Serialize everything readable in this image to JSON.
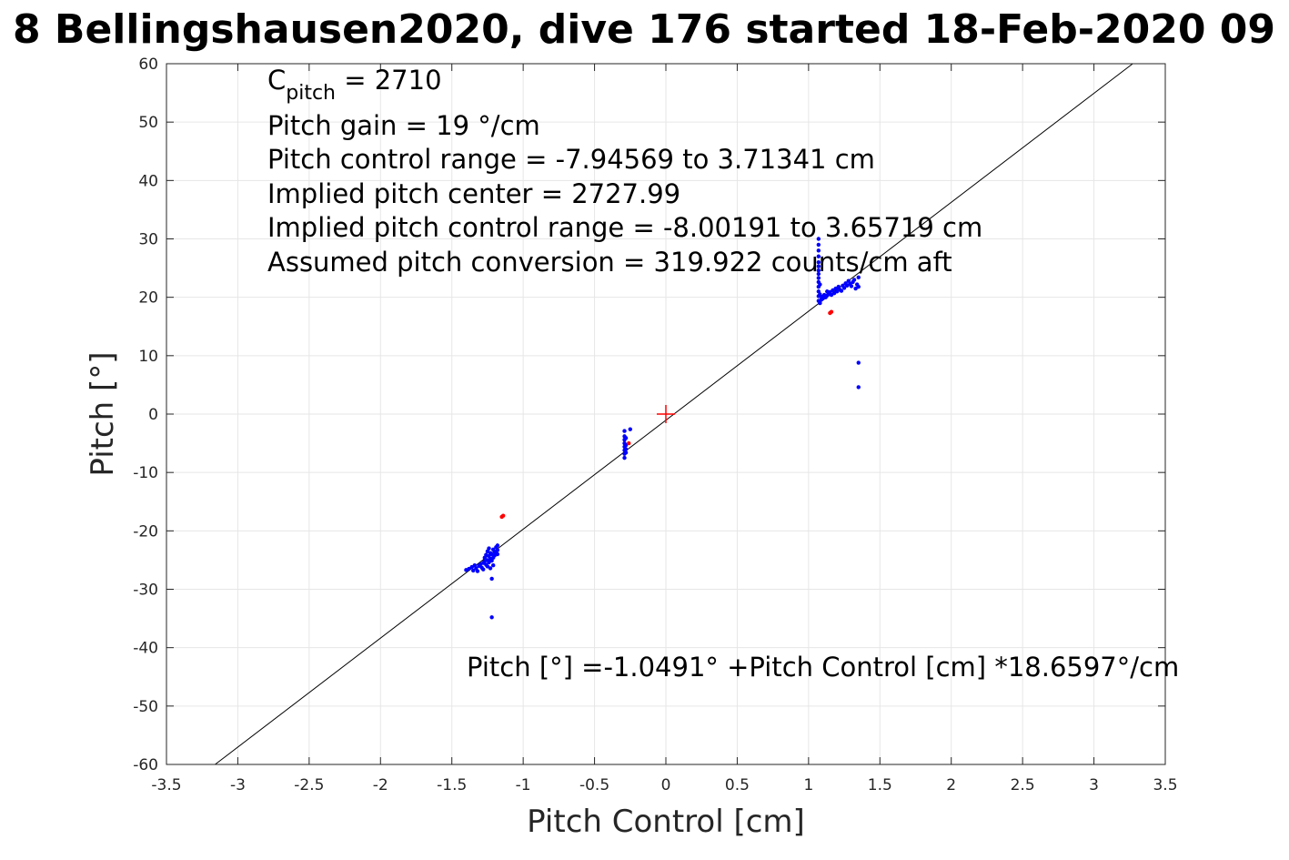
{
  "chart_data": {
    "type": "scatter",
    "title": "8 Bellingshausen2020, dive 176 started 18-Feb-2020 09",
    "xlabel": "Pitch Control [cm]",
    "ylabel": "Pitch [°]",
    "xlim": [
      -3.5,
      3.5
    ],
    "ylim": [
      -60,
      60
    ],
    "x_ticks": [
      -3.5,
      -3,
      -2.5,
      -2,
      -1.5,
      -1,
      -0.5,
      0,
      0.5,
      1,
      1.5,
      2,
      2.5,
      3,
      3.5
    ],
    "x_tick_labels": [
      "-3.5",
      "-3",
      "-2.5",
      "-2",
      "-1.5",
      "-1",
      "-0.5",
      "0",
      "0.5",
      "1",
      "1.5",
      "2",
      "2.5",
      "3",
      "3.5"
    ],
    "y_ticks": [
      -60,
      -50,
      -40,
      -30,
      -20,
      -10,
      0,
      10,
      20,
      30,
      40,
      50,
      60
    ],
    "y_tick_labels": [
      "-60",
      "-50",
      "-40",
      "-30",
      "-20",
      "-10",
      "0",
      "10",
      "20",
      "30",
      "40",
      "50",
      "60"
    ],
    "grid": true,
    "annotations": {
      "c_pitch_label": "C",
      "c_pitch_sub": "pitch",
      "c_pitch_value": " = 2710",
      "pitch_gain": "Pitch gain = 19 °/cm",
      "control_range": "Pitch control range = -7.94569 to 3.71341 cm",
      "implied_center": "Implied pitch center = 2727.99",
      "implied_range": "Implied pitch control range = -8.00191 to 3.65719 cm",
      "conversion": "Assumed pitch conversion = 319.922 counts/cm aft",
      "fit_equation": "Pitch [°] =-1.0491° +Pitch Control [cm] *18.6597°/cm"
    },
    "fit_line": {
      "intercept": -1.0491,
      "slope": 18.6597,
      "color": "#000000"
    },
    "center_marker": {
      "x": 0,
      "y": 0,
      "color": "#ff0000"
    },
    "series": [
      {
        "color": "#0000ff",
        "points": [
          [
            -1.4,
            -26.7
          ],
          [
            -1.38,
            -26.5
          ],
          [
            -1.36,
            -26.2
          ],
          [
            -1.35,
            -26.8
          ],
          [
            -1.34,
            -25.9
          ],
          [
            -1.33,
            -26.4
          ],
          [
            -1.32,
            -26.9
          ],
          [
            -1.31,
            -26.0
          ],
          [
            -1.3,
            -25.7
          ],
          [
            -1.29,
            -26.3
          ],
          [
            -1.28,
            -25.5
          ],
          [
            -1.28,
            -26.6
          ],
          [
            -1.27,
            -25.2
          ],
          [
            -1.27,
            -24.6
          ],
          [
            -1.26,
            -25.8
          ],
          [
            -1.26,
            -24.1
          ],
          [
            -1.25,
            -23.5
          ],
          [
            -1.25,
            -25.0
          ],
          [
            -1.25,
            -26.1
          ],
          [
            -1.24,
            -24.3
          ],
          [
            -1.24,
            -23.0
          ],
          [
            -1.24,
            -25.4
          ],
          [
            -1.23,
            -24.8
          ],
          [
            -1.23,
            -23.8
          ],
          [
            -1.23,
            -26.4
          ],
          [
            -1.22,
            -25.1
          ],
          [
            -1.22,
            -24.0
          ],
          [
            -1.22,
            -28.2
          ],
          [
            -1.22,
            -34.8
          ],
          [
            -1.21,
            -23.2
          ],
          [
            -1.21,
            -24.6
          ],
          [
            -1.21,
            -25.9
          ],
          [
            -1.2,
            -23.6
          ],
          [
            -1.2,
            -24.2
          ],
          [
            -1.19,
            -22.8
          ],
          [
            -1.19,
            -23.9
          ],
          [
            -1.18,
            -23.3
          ],
          [
            -1.18,
            -22.5
          ],
          [
            -1.18,
            -24.0
          ],
          [
            -0.29,
            -2.9
          ],
          [
            -0.29,
            -3.8
          ],
          [
            -0.29,
            -4.4
          ],
          [
            -0.29,
            -5.0
          ],
          [
            -0.29,
            -5.6
          ],
          [
            -0.29,
            -6.2
          ],
          [
            -0.29,
            -6.8
          ],
          [
            -0.29,
            -7.5
          ],
          [
            -0.28,
            -4.1
          ],
          [
            -0.28,
            -5.3
          ],
          [
            -0.28,
            -6.0
          ],
          [
            -0.28,
            -6.6
          ],
          [
            -0.25,
            -2.6
          ],
          [
            1.07,
            30.0
          ],
          [
            1.07,
            29.0
          ],
          [
            1.07,
            28.0
          ],
          [
            1.07,
            27.0
          ],
          [
            1.07,
            26.0
          ],
          [
            1.07,
            25.3
          ],
          [
            1.07,
            24.6
          ],
          [
            1.07,
            24.0
          ],
          [
            1.07,
            23.3
          ],
          [
            1.07,
            22.6
          ],
          [
            1.07,
            21.8
          ],
          [
            1.07,
            21.0
          ],
          [
            1.07,
            20.2
          ],
          [
            1.07,
            19.4
          ],
          [
            1.08,
            19.0
          ],
          [
            1.08,
            20.5
          ],
          [
            1.08,
            22.2
          ],
          [
            1.09,
            19.6
          ],
          [
            1.09,
            20.1
          ],
          [
            1.1,
            19.8
          ],
          [
            1.11,
            20.4
          ],
          [
            1.12,
            20.0
          ],
          [
            1.13,
            21.0
          ],
          [
            1.13,
            20.3
          ],
          [
            1.14,
            20.6
          ],
          [
            1.15,
            20.9
          ],
          [
            1.16,
            20.4
          ],
          [
            1.17,
            21.2
          ],
          [
            1.18,
            20.7
          ],
          [
            1.19,
            21.5
          ],
          [
            1.2,
            21.0
          ],
          [
            1.21,
            21.8
          ],
          [
            1.22,
            21.3
          ],
          [
            1.23,
            21.1
          ],
          [
            1.24,
            22.0
          ],
          [
            1.25,
            21.6
          ],
          [
            1.26,
            22.4
          ],
          [
            1.27,
            22.0
          ],
          [
            1.28,
            22.8
          ],
          [
            1.29,
            22.3
          ],
          [
            1.3,
            21.9
          ],
          [
            1.31,
            22.6
          ],
          [
            1.32,
            23.0
          ],
          [
            1.33,
            21.5
          ],
          [
            1.34,
            22.2
          ],
          [
            1.35,
            23.4
          ],
          [
            1.35,
            21.8
          ],
          [
            1.35,
            8.8
          ],
          [
            1.35,
            4.6
          ]
        ]
      },
      {
        "color": "#ff0000",
        "points": [
          [
            -1.14,
            -17.4
          ],
          [
            -1.15,
            -17.6
          ],
          [
            -0.26,
            -5.0
          ],
          [
            1.15,
            17.3
          ],
          [
            1.16,
            17.5
          ]
        ]
      }
    ]
  }
}
